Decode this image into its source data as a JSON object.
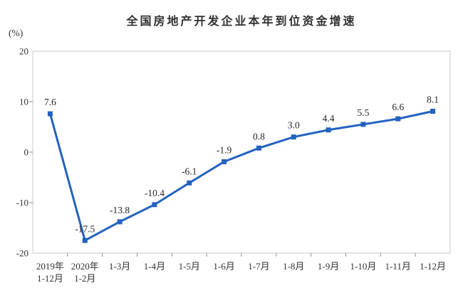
{
  "title": "全国房地产开发企业本年到位资金增速",
  "chart_data": {
    "type": "line",
    "title": "全国房地产开发企业本年到位资金增速",
    "xlabel": "",
    "ylabel": "(%)",
    "ylim": [
      -20,
      20
    ],
    "yticks": [
      20,
      10,
      0,
      -10,
      -20
    ],
    "grid": false,
    "legend": "none",
    "categories": [
      [
        "2019年",
        "1-12月"
      ],
      [
        "2020年",
        "1-2月"
      ],
      [
        "1-3月"
      ],
      [
        "1-4月"
      ],
      [
        "1-5月"
      ],
      [
        "1-6月"
      ],
      [
        "1-7月"
      ],
      [
        "1-8月"
      ],
      [
        "1-9月"
      ],
      [
        "1-10月"
      ],
      [
        "1-11月"
      ],
      [
        "1-12月"
      ]
    ],
    "values": [
      7.6,
      -17.5,
      -13.8,
      -10.4,
      -6.1,
      -1.9,
      0.8,
      3.0,
      4.4,
      5.5,
      6.6,
      8.1
    ],
    "point_labels": [
      "7.6",
      "-17.5",
      "-13.8",
      "-10.4",
      "-6.1",
      "-1.9",
      "0.8",
      "3.0",
      "4.4",
      "5.5",
      "6.6",
      "8.1"
    ],
    "line_color": "#2362BE",
    "marker": "square"
  },
  "colors": {
    "background": "#FFFFFF",
    "plot_border": "#C8C8C8",
    "axis_tick": "#8C8C8C",
    "text": "#333333"
  }
}
